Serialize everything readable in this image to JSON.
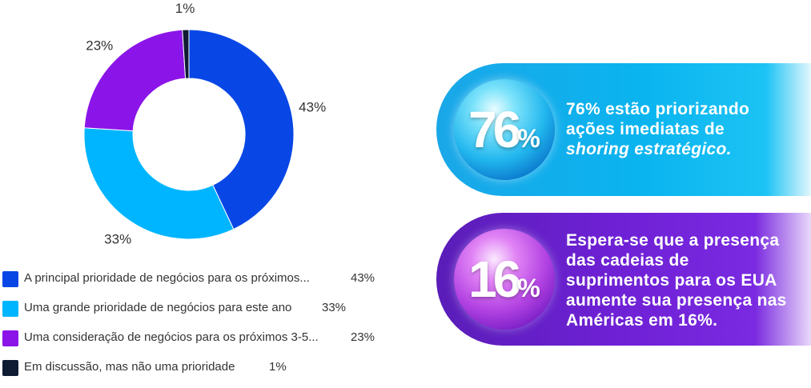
{
  "chart_data": {
    "type": "pie",
    "style": "donut",
    "categories": [
      "A principal prioridade de negócios para os próximos...",
      "Uma grande prioridade de negócios para este ano",
      "Uma consideração de negócios para os próximos 3-5...",
      "Em discussão, mas não uma prioridade"
    ],
    "values": [
      43,
      33,
      23,
      1
    ],
    "value_labels": [
      "43%",
      "33%",
      "23%",
      "1%"
    ],
    "colors": [
      "#0847e6",
      "#00b5ff",
      "#8b14e8",
      "#0f1b33"
    ],
    "legend_position": "bottom-left"
  },
  "stats": [
    {
      "number": "76",
      "sign": "%",
      "text_lines": [
        "76% estão priorizando",
        "ações imediatas de"
      ],
      "text_italic": "shoring estratégico."
    },
    {
      "number": "16",
      "sign": "%",
      "text_lines": [
        "Espera-se que a presença",
        "das cadeias de",
        "suprimentos para os EUA",
        "aumente sua presença nas",
        "Américas em 16%."
      ]
    }
  ]
}
